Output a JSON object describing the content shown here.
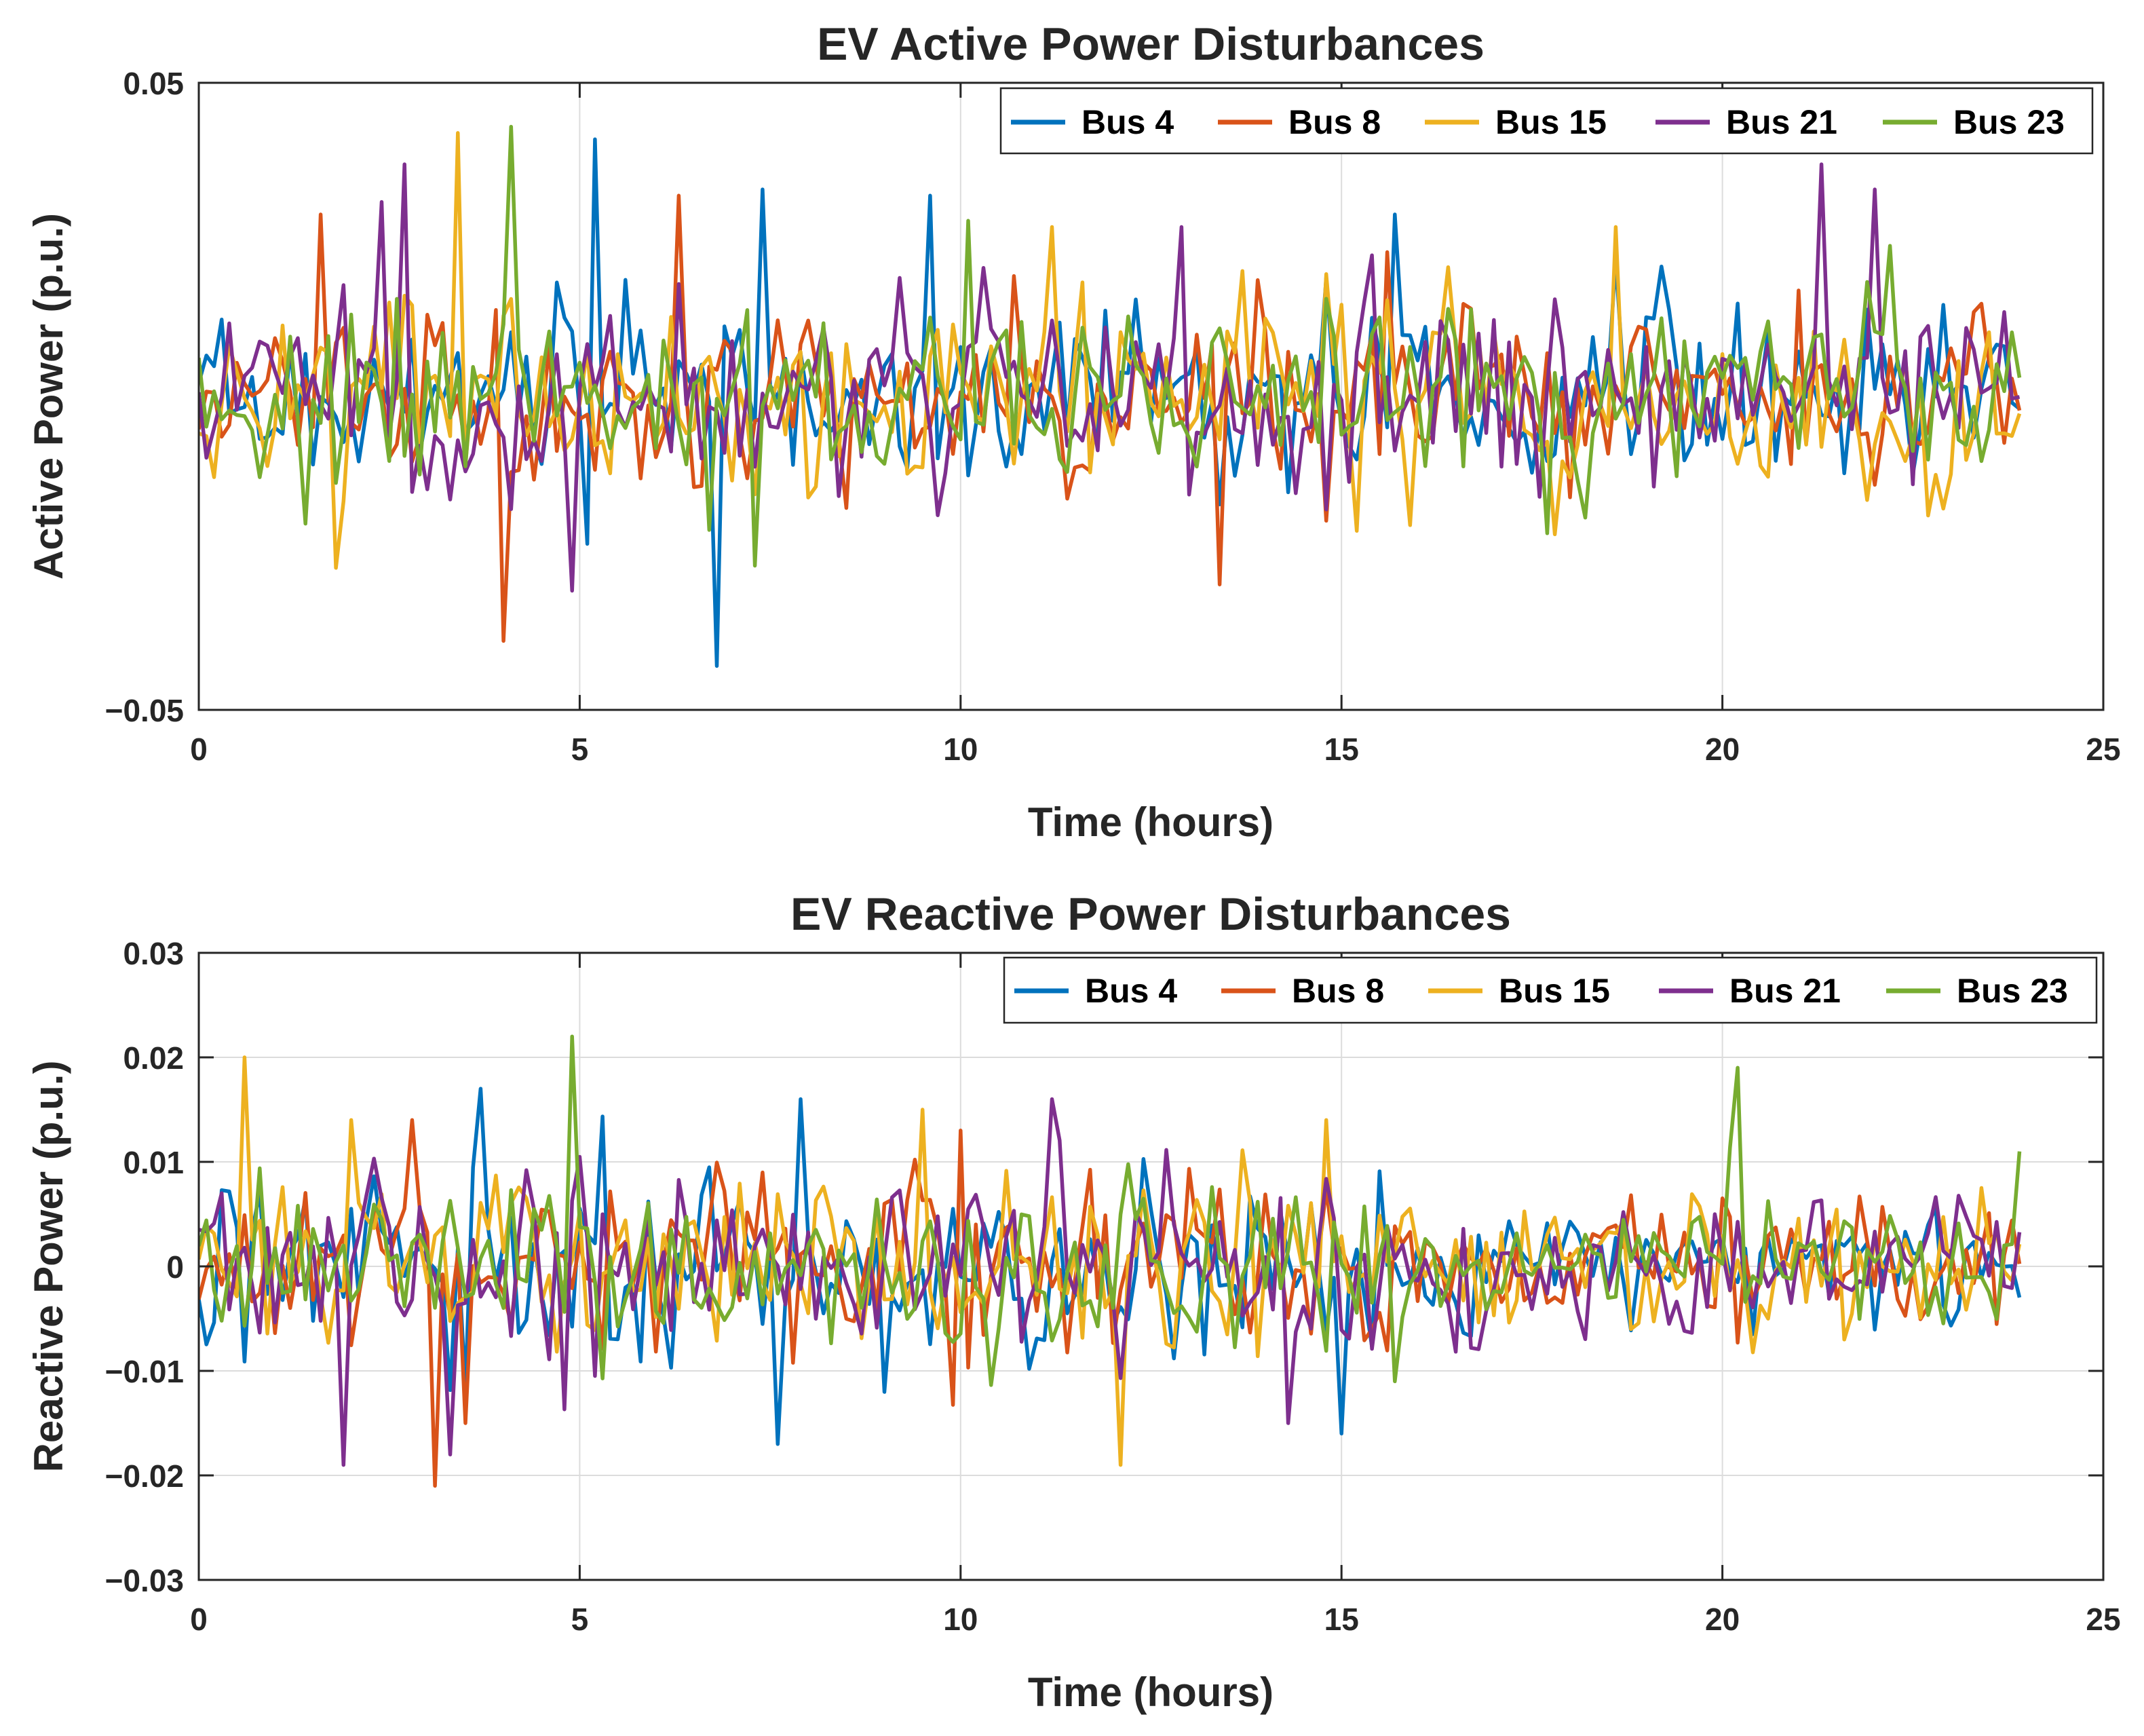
{
  "chart_data": [
    {
      "type": "line",
      "title": "EV Active Power Disturbances",
      "xlabel": "Time (hours)",
      "ylabel": "Active Power (p.u.)",
      "xlim": [
        0,
        25
      ],
      "ylim": [
        -0.05,
        0.05
      ],
      "grid": true,
      "legend_position": "top-right",
      "xticks": [
        0,
        5,
        10,
        15,
        20,
        25
      ],
      "xtick_labels": [
        "0",
        "5",
        "10",
        "15",
        "20",
        "25"
      ],
      "yticks": [
        -0.05,
        0.05
      ],
      "ytick_labels": [
        "−0.05",
        "0.05"
      ],
      "x": {
        "start": 0,
        "step": 0.1,
        "count": 240
      },
      "series": [
        {
          "name": "Bus 4",
          "color": "#0072BD",
          "approx_std": 0.0085,
          "notable_points": [
            [
              5.2,
              0.041
            ],
            [
              6.8,
              -0.043
            ],
            [
              7.4,
              0.033
            ],
            [
              9.6,
              0.032
            ],
            [
              15.7,
              0.029
            ]
          ]
        },
        {
          "name": "Bus 8",
          "color": "#D95319",
          "approx_std": 0.0085,
          "notable_points": [
            [
              1.6,
              0.029
            ],
            [
              4.0,
              -0.039
            ],
            [
              6.3,
              0.032
            ],
            [
              13.4,
              -0.03
            ],
            [
              15.6,
              0.023
            ]
          ]
        },
        {
          "name": "Bus 15",
          "color": "#EDB120",
          "approx_std": 0.0085,
          "notable_points": [
            [
              3.4,
              0.042
            ],
            [
              11.2,
              0.027
            ],
            [
              17.8,
              -0.022
            ],
            [
              18.6,
              0.027
            ],
            [
              22.7,
              -0.019
            ]
          ]
        },
        {
          "name": "Bus 21",
          "color": "#7E2F8E",
          "approx_std": 0.0085,
          "notable_points": [
            [
              2.4,
              0.031
            ],
            [
              2.7,
              0.037
            ],
            [
              4.9,
              -0.031
            ],
            [
              12.9,
              0.027
            ],
            [
              21.3,
              0.037
            ],
            [
              22.0,
              0.033
            ]
          ]
        },
        {
          "name": "Bus 23",
          "color": "#77AC30",
          "approx_std": 0.0085,
          "notable_points": [
            [
              4.1,
              0.043
            ],
            [
              7.3,
              -0.027
            ],
            [
              10.1,
              0.028
            ],
            [
              22.2,
              0.024
            ]
          ]
        }
      ]
    },
    {
      "type": "line",
      "title": "EV Reactive Power Disturbances",
      "xlabel": "Time (hours)",
      "ylabel": "Reactive Power (p.u.)",
      "xlim": [
        0,
        25
      ],
      "ylim": [
        -0.03,
        0.03
      ],
      "grid": true,
      "legend_position": "top-right",
      "xticks": [
        0,
        5,
        10,
        15,
        20,
        25
      ],
      "xtick_labels": [
        "0",
        "5",
        "10",
        "15",
        "20",
        "25"
      ],
      "yticks": [
        -0.03,
        -0.02,
        -0.01,
        0,
        0.01,
        0.02,
        0.03
      ],
      "ytick_labels": [
        "−0.03",
        "−0.02",
        "−0.01",
        "0",
        "0.01",
        "0.02",
        "0.03"
      ],
      "x": {
        "start": 0,
        "step": 0.1,
        "count": 240
      },
      "series": [
        {
          "name": "Bus 4",
          "color": "#0072BD",
          "approx_std": 0.005,
          "notable_points": [
            [
              3.7,
              0.017
            ],
            [
              7.9,
              0.016
            ],
            [
              7.6,
              -0.017
            ],
            [
              15.0,
              -0.016
            ]
          ]
        },
        {
          "name": "Bus 8",
          "color": "#D95319",
          "approx_std": 0.005,
          "notable_points": [
            [
              2.8,
              0.014
            ],
            [
              3.1,
              -0.021
            ],
            [
              3.5,
              -0.015
            ],
            [
              10.0,
              0.013
            ]
          ]
        },
        {
          "name": "Bus 15",
          "color": "#EDB120",
          "approx_std": 0.005,
          "notable_points": [
            [
              0.6,
              0.02
            ],
            [
              2.0,
              0.014
            ],
            [
              9.5,
              0.015
            ],
            [
              12.1,
              -0.019
            ],
            [
              14.8,
              0.014
            ]
          ]
        },
        {
          "name": "Bus 21",
          "color": "#7E2F8E",
          "approx_std": 0.005,
          "notable_points": [
            [
              1.9,
              -0.019
            ],
            [
              3.3,
              -0.018
            ],
            [
              11.2,
              0.016
            ],
            [
              14.3,
              -0.015
            ]
          ]
        },
        {
          "name": "Bus 23",
          "color": "#77AC30",
          "approx_std": 0.005,
          "notable_points": [
            [
              4.9,
              0.022
            ],
            [
              20.2,
              0.019
            ],
            [
              23.9,
              0.011
            ],
            [
              15.7,
              -0.011
            ]
          ]
        }
      ]
    }
  ]
}
